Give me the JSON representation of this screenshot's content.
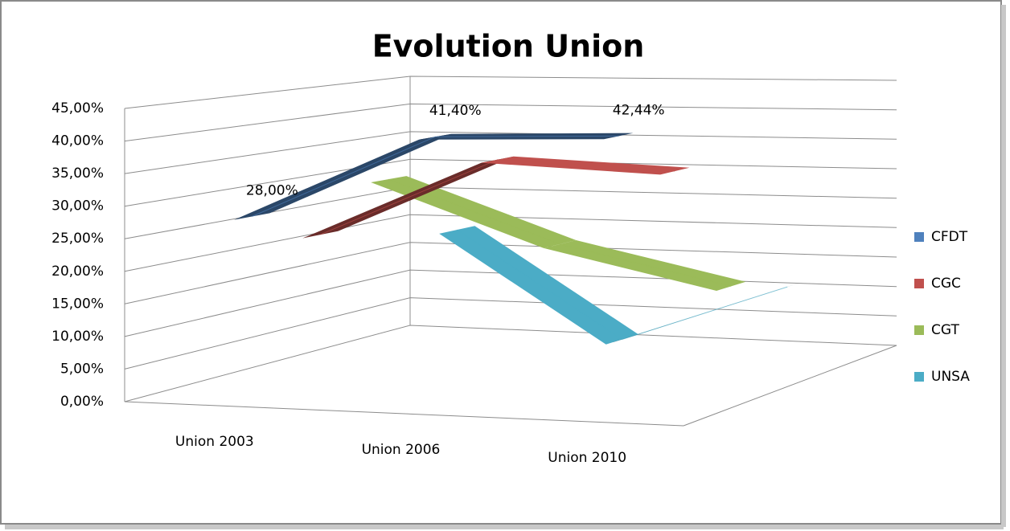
{
  "chart_data": {
    "type": "line3d",
    "title": "Evolution Union",
    "categories": [
      "Union 2003",
      "Union 2006",
      "Union 2010"
    ],
    "series": [
      {
        "name": "CFDT",
        "color": "#4f81bd",
        "values": [
          28.0,
          41.4,
          42.44
        ],
        "value_labels": [
          "28,00%",
          "41,40%",
          "42,44%"
        ]
      },
      {
        "name": "CGC",
        "color": "#c0504d",
        "values": [
          23,
          36,
          35
        ]
      },
      {
        "name": "CGT",
        "color": "#9bbb59",
        "values": [
          30,
          20,
          14
        ]
      },
      {
        "name": "UNSA",
        "color": "#4bacc6",
        "values": [
          19,
          1,
          11
        ]
      }
    ],
    "ylim": [
      0,
      45
    ],
    "yticks": [
      {
        "value": 0,
        "label": "0,00%"
      },
      {
        "value": 5,
        "label": "5,00%"
      },
      {
        "value": 10,
        "label": "10,00%"
      },
      {
        "value": 15,
        "label": "15,00%"
      },
      {
        "value": 20,
        "label": "20,00%"
      },
      {
        "value": 25,
        "label": "25,00%"
      },
      {
        "value": 30,
        "label": "30,00%"
      },
      {
        "value": 35,
        "label": "35,00%"
      },
      {
        "value": 40,
        "label": "40,00%"
      },
      {
        "value": 45,
        "label": "45,00%"
      }
    ],
    "grid": true,
    "legend": "right"
  }
}
